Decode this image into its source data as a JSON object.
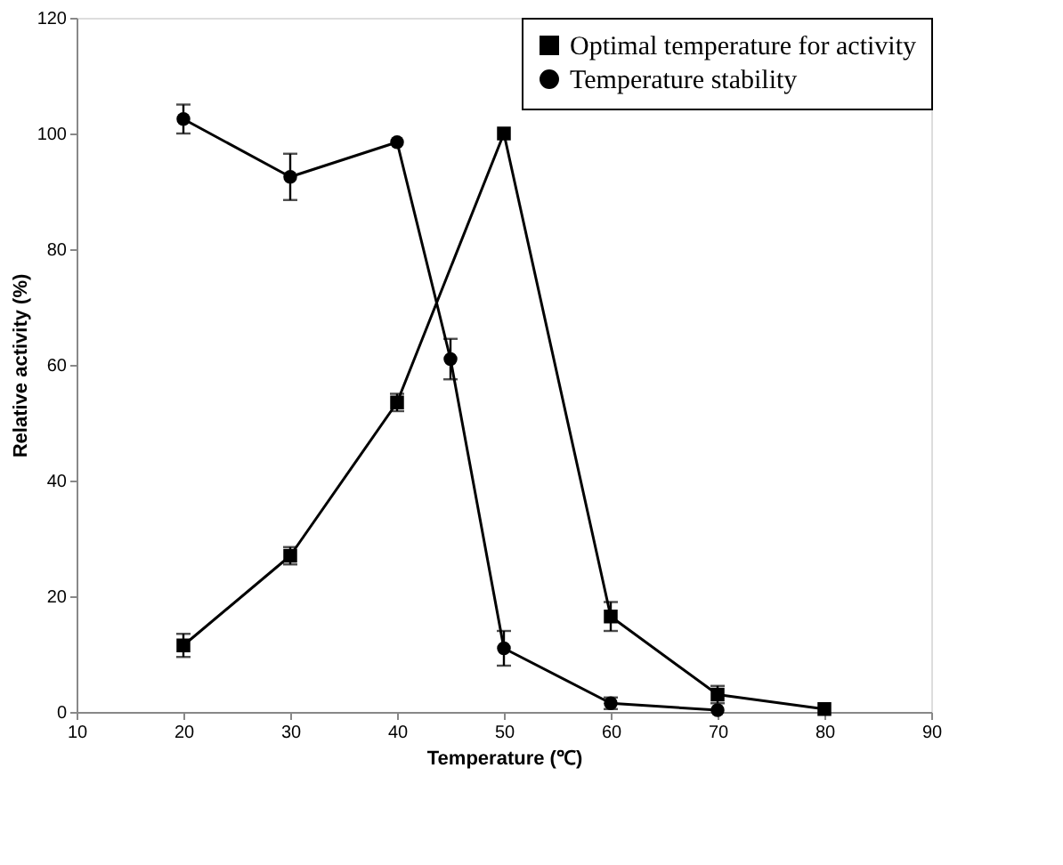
{
  "chart_data": {
    "type": "line",
    "xlabel": "Temperature (℃)",
    "ylabel": "Relative activity (%)",
    "xlim": [
      10,
      90
    ],
    "xticks": [
      10,
      20,
      30,
      40,
      50,
      60,
      70,
      80,
      90
    ],
    "ylim": [
      0,
      120
    ],
    "yticks": [
      0,
      20,
      40,
      60,
      80,
      100,
      120
    ],
    "grid": false,
    "legend": "top right",
    "line_style": "solid",
    "series": [
      {
        "name": "Optimal temperature for activity",
        "color": "#000000",
        "marker": "square",
        "x": [
          20,
          30,
          40,
          50,
          60,
          70,
          80
        ],
        "values": [
          11.5,
          27,
          53.5,
          100,
          16.5,
          3,
          0.5
        ],
        "errors": [
          2,
          1.5,
          1.5,
          null,
          2.5,
          1.5,
          null
        ]
      },
      {
        "name": "Temperature stability",
        "color": "#000000",
        "marker": "circle",
        "x": [
          20,
          30,
          40,
          45,
          50,
          60,
          70
        ],
        "values": [
          102.5,
          92.5,
          98.5,
          61,
          11,
          1.5,
          0.3
        ],
        "errors": [
          2.5,
          4,
          null,
          3.5,
          3,
          1,
          null
        ]
      }
    ]
  }
}
